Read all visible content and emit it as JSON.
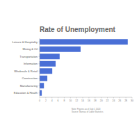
{
  "chart_data": {
    "type": "bar",
    "orientation": "horizontal",
    "title": "Rate of Unemployment",
    "categories": [
      "Leisure & Hospitality",
      "Mining & Oil",
      "Transportation",
      "Information",
      "Wholesale & Retail",
      "Construction",
      "Manufacturing",
      "Education & Health"
    ],
    "values": [
      28.6,
      13.3,
      6.5,
      5.2,
      4.1,
      2.5,
      1.4,
      0.7
    ],
    "color": "#4a6fd6",
    "xlim": [
      0,
      30
    ],
    "xticks": [
      0,
      2,
      4,
      6,
      8,
      10,
      12,
      14,
      16,
      18,
      20,
      22,
      24,
      26,
      28,
      30
    ],
    "grid": false,
    "annotations": [
      "Note: Figures as of July 1 2020",
      "Source: Bureau of Labor Statistics"
    ]
  }
}
